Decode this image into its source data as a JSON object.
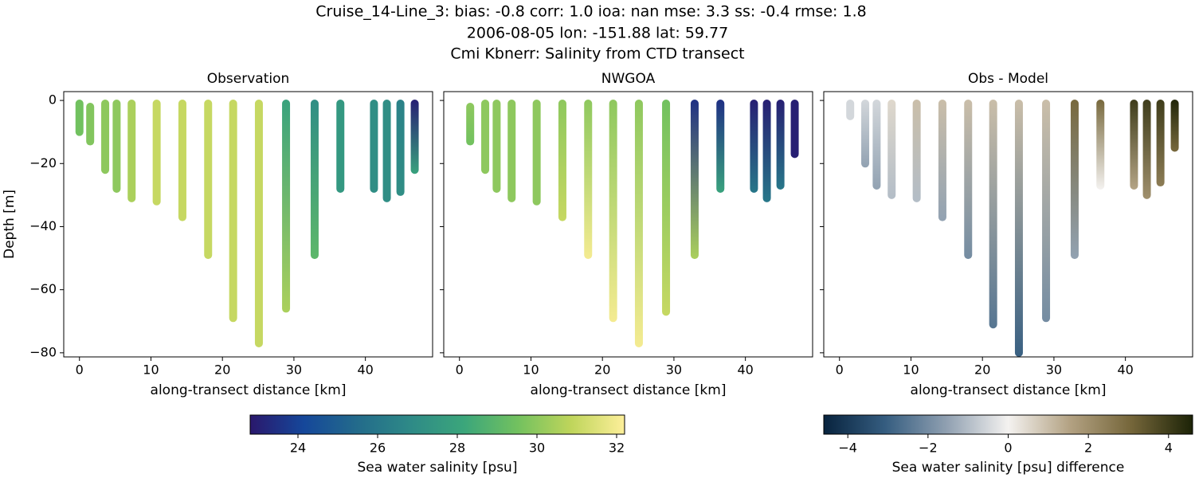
{
  "suptitle": [
    "Cruise_14-Line_3: bias: -0.8  corr: 1.0  ioa: nan  mse: 3.3  ss: -0.4  rmse: 1.8",
    "2006-08-05 lon: -151.88 lat: 59.77",
    "Cmi Kbnerr: Salinity from CTD transect"
  ],
  "chart_data": [
    {
      "type": "profile",
      "title": "Observation",
      "xlabel": "along-transect distance [km]",
      "ylabel": "Depth [m]",
      "colorbar": 0,
      "xlim": [
        -2.2,
        49.4
      ],
      "ylim": [
        -81.3,
        2.8
      ],
      "xticks": [
        0,
        10,
        20,
        30,
        40
      ],
      "yticks": [
        {
          "value": -80,
          "label": "−80"
        },
        {
          "value": -60,
          "label": "−60"
        },
        {
          "value": -40,
          "label": "−40"
        },
        {
          "value": -20,
          "label": "−20"
        },
        0
      ],
      "casts": {
        "x": [
          0,
          1.5,
          3.6,
          5.2,
          7.3,
          10.8,
          14.4,
          18,
          21.5,
          25.1,
          28.9,
          32.9,
          36.5,
          41.2,
          43,
          44.9,
          46.9
        ],
        "top": [
          -1,
          -2,
          -1,
          -1,
          -1,
          -1,
          -1,
          -1,
          -1,
          -1,
          -1,
          -1,
          -1,
          -1,
          -1,
          -1,
          -1
        ],
        "bottom": [
          -10,
          -13,
          -22,
          -28,
          -31,
          -32,
          -37,
          -49,
          -69,
          -77,
          -66,
          -49,
          -28,
          -28,
          -31,
          -29,
          -22
        ],
        "top_values": [
          29.5,
          29.8,
          30,
          30,
          30.5,
          31,
          31,
          31,
          31,
          31,
          28,
          27,
          27.5,
          27,
          27,
          26.5,
          23
        ],
        "bottom_values": [
          29.5,
          29.8,
          30,
          30,
          30.5,
          31,
          31,
          31,
          31,
          31,
          30.5,
          29,
          27.5,
          27,
          27,
          27,
          28
        ]
      }
    },
    {
      "type": "profile",
      "title": "NWGOA",
      "xlabel": "along-transect distance [km]",
      "colorbar": 0,
      "xlim": [
        -2.2,
        49.4
      ],
      "ylim": [
        -81.3,
        2.8
      ],
      "xticks": [
        0,
        10,
        20,
        30,
        40
      ],
      "yticks": [
        -80,
        -60,
        -40,
        -20,
        0
      ],
      "casts": {
        "x": [
          1.5,
          3.6,
          5.2,
          7.3,
          10.8,
          14.4,
          18,
          21.5,
          25.1,
          28.9,
          32.9,
          36.5,
          41.2,
          43,
          44.9,
          46.9
        ],
        "top": [
          -2,
          -1,
          -1,
          -1,
          -1,
          -1,
          -1,
          -1,
          -1,
          -1,
          -1,
          -1,
          -1,
          -1,
          -1,
          -1
        ],
        "bottom": [
          -13,
          -22,
          -28,
          -31,
          -32,
          -37,
          -49,
          -69,
          -77,
          -67,
          -49,
          -28,
          -28,
          -31,
          -27,
          -17
        ],
        "top_values": [
          30,
          30,
          30,
          30,
          30,
          30,
          30,
          30,
          30,
          29.5,
          23.5,
          23.5,
          23,
          23,
          23,
          23
        ],
        "bottom_values": [
          29.5,
          30,
          30,
          30,
          30,
          31,
          32,
          32,
          32,
          31,
          30.5,
          28,
          26,
          26,
          26,
          23
        ]
      }
    },
    {
      "type": "profile",
      "title": "Obs - Model",
      "xlabel": "along-transect distance [km]",
      "colorbar": 1,
      "xlim": [
        -2.2,
        49.4
      ],
      "ylim": [
        -81.3,
        2.8
      ],
      "xticks": [
        0,
        10,
        20,
        30,
        40
      ],
      "yticks": [
        -80,
        -60,
        -40,
        -20,
        0
      ],
      "casts": {
        "x": [
          1.5,
          3.6,
          5.2,
          7.3,
          10.8,
          14.4,
          18,
          21.5,
          25.1,
          28.9,
          32.9,
          36.5,
          41.2,
          43,
          44.9,
          46.9
        ],
        "top": [
          -1,
          -1,
          -1,
          -1,
          -1,
          -1,
          -1,
          -1,
          -1,
          -1,
          -1,
          -1,
          -1,
          -1,
          -1,
          -1
        ],
        "bottom": [
          -5,
          -20,
          -27,
          -30,
          -31,
          -37,
          -49,
          -71,
          -80,
          -69,
          -49,
          -27,
          -27,
          -30,
          -26,
          -15
        ],
        "top_values": [
          -0.5,
          -0.5,
          -0.5,
          0.5,
          1,
          1,
          1,
          1,
          1,
          1,
          3,
          3,
          4,
          4,
          4,
          4.5
        ],
        "bottom_values": [
          -0.5,
          -1.5,
          -1.5,
          -1,
          -1,
          -1.5,
          -2,
          -2.5,
          -3,
          -2,
          -1.5,
          0,
          1.5,
          2,
          2.5,
          3
        ]
      }
    }
  ],
  "colorbars": [
    {
      "label": "Sea water salinity [psu]",
      "lim": [
        22.8,
        32.2
      ],
      "ticks": [
        24,
        26,
        28,
        30,
        32
      ],
      "colormap": [
        "#2a186c",
        "#15479a",
        "#236b8b",
        "#2e8a87",
        "#3ba67b",
        "#72c15f",
        "#bfd55b",
        "#fdef9a"
      ]
    },
    {
      "label": "Sea water salinity [psu] difference",
      "lim": [
        -4.6,
        4.6
      ],
      "ticks": [
        {
          "value": -4,
          "label": "−4"
        },
        {
          "value": -2,
          "label": "−2"
        },
        0,
        2,
        4
      ],
      "colormap": [
        "#08233e",
        "#355d80",
        "#90a0b1",
        "#f4f2f0",
        "#b3a283",
        "#75663a",
        "#1c2307"
      ]
    }
  ]
}
